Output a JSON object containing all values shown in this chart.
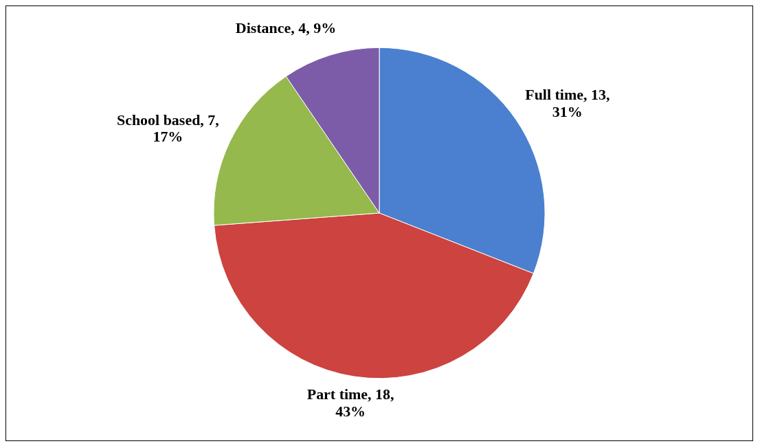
{
  "chart_data": {
    "type": "pie",
    "categories": [
      "Full time",
      "Part time",
      "School based",
      "Distance"
    ],
    "values": [
      13,
      18,
      7,
      4
    ],
    "colors": [
      "#4a80cf",
      "#cc433f",
      "#95b94c",
      "#7c5ca8"
    ],
    "value_labels": [
      "13, 31%",
      "18, 43%",
      "7, 17%",
      "4, 9%"
    ],
    "legend": false
  }
}
